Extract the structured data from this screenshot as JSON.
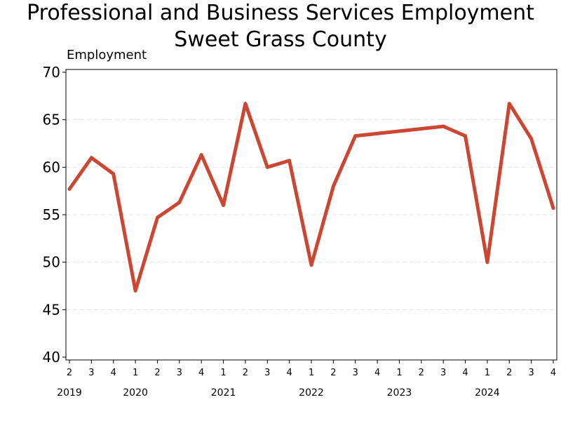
{
  "chart_data": {
    "type": "line",
    "title": "Professional and Business Services Employment",
    "subtitle": "Sweet Grass County",
    "ylabel": "Employment",
    "xlabel": "",
    "ylim": [
      40,
      70
    ],
    "yticks": [
      40,
      45,
      50,
      55,
      60,
      65,
      70
    ],
    "grid": true,
    "quarters": [
      {
        "quarter": "2",
        "year": "2019"
      },
      {
        "quarter": "3",
        "year": ""
      },
      {
        "quarter": "4",
        "year": ""
      },
      {
        "quarter": "1",
        "year": "2020"
      },
      {
        "quarter": "2",
        "year": ""
      },
      {
        "quarter": "3",
        "year": ""
      },
      {
        "quarter": "4",
        "year": ""
      },
      {
        "quarter": "1",
        "year": "2021"
      },
      {
        "quarter": "2",
        "year": ""
      },
      {
        "quarter": "3",
        "year": ""
      },
      {
        "quarter": "4",
        "year": ""
      },
      {
        "quarter": "1",
        "year": "2022"
      },
      {
        "quarter": "2",
        "year": ""
      },
      {
        "quarter": "3",
        "year": ""
      },
      {
        "quarter": "4",
        "year": ""
      },
      {
        "quarter": "1",
        "year": "2023"
      },
      {
        "quarter": "2",
        "year": ""
      },
      {
        "quarter": "3",
        "year": ""
      },
      {
        "quarter": "4",
        "year": ""
      },
      {
        "quarter": "1",
        "year": "2024"
      },
      {
        "quarter": "2",
        "year": ""
      },
      {
        "quarter": "3",
        "year": ""
      },
      {
        "quarter": "4",
        "year": ""
      }
    ],
    "series": [
      {
        "color": "#cc4631",
        "points": [
          {
            "i": 0,
            "y": 57.7
          },
          {
            "i": 1,
            "y": 61.0
          },
          {
            "i": 2,
            "y": 59.3
          },
          {
            "i": 3,
            "y": 47.0
          },
          {
            "i": 4,
            "y": 54.7
          },
          {
            "i": 5,
            "y": 56.3
          },
          {
            "i": 6,
            "y": 61.3
          },
          {
            "i": 7,
            "y": 56.0
          },
          {
            "i": 8,
            "y": 66.7
          },
          {
            "i": 9,
            "y": 60.0
          },
          {
            "i": 10,
            "y": 60.7
          },
          {
            "i": 11,
            "y": 49.7
          },
          {
            "i": 12,
            "y": 58.0
          },
          {
            "i": 13,
            "y": 63.3
          },
          {
            "i": 17,
            "y": 64.3
          },
          {
            "i": 18,
            "y": 63.3
          },
          {
            "i": 19,
            "y": 50.0
          },
          {
            "i": 20,
            "y": 66.7
          },
          {
            "i": 21,
            "y": 63.0
          },
          {
            "i": 22,
            "y": 55.7
          }
        ]
      }
    ]
  }
}
